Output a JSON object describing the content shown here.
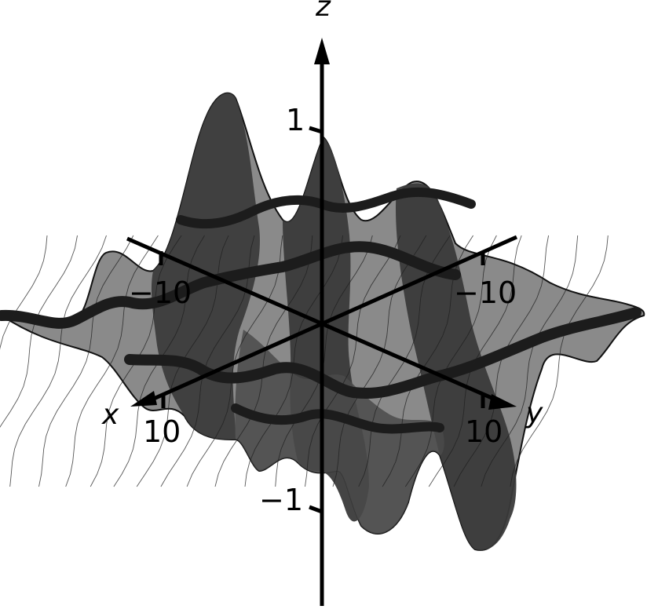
{
  "axes": {
    "x": {
      "name": "x",
      "tick_label": "10"
    },
    "y": {
      "name": "y",
      "tick_label": "10"
    },
    "z": {
      "name": "z"
    },
    "back_x_tick": "−10",
    "back_y_tick": "−10",
    "z_top_tick": "1",
    "z_bottom_tick": "−1"
  },
  "surface": {
    "fill_light": "#8a8a8a",
    "fill_dark": "#3a3a3a",
    "mesh": "#1e1e1e",
    "outline": "#111111"
  }
}
